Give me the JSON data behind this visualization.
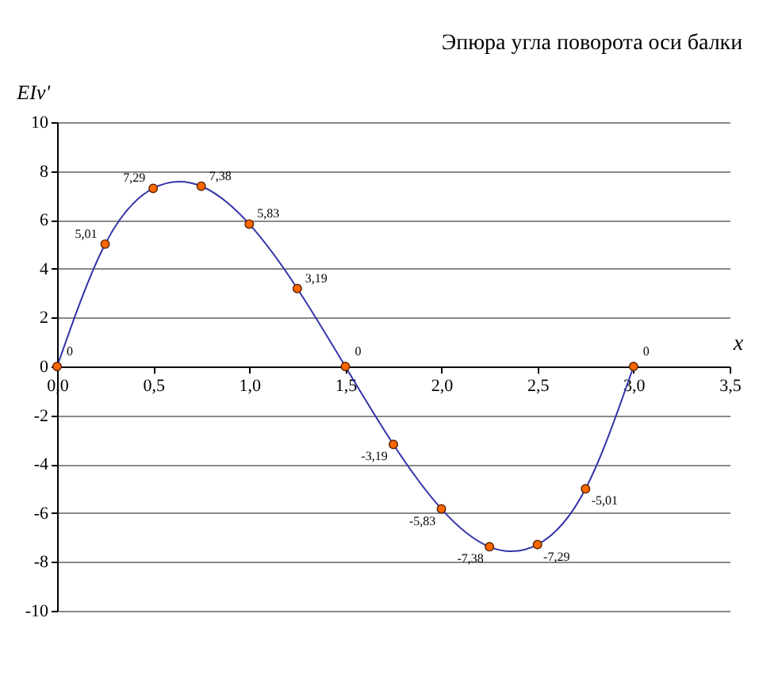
{
  "chart_data": {
    "type": "line",
    "title": "Эпюра угла поворота оси балки",
    "xlabel": "x",
    "ylabel": "EIv'",
    "x": [
      0,
      0.25,
      0.5,
      0.75,
      1,
      1.25,
      1.5,
      1.75,
      2,
      2.25,
      2.5,
      2.75,
      3
    ],
    "series": [
      {
        "color": "#3333aa",
        "values": [
          0,
          5.01,
          7.29,
          7.38,
          5.83,
          3.19,
          0,
          -3.19,
          -5.83,
          -7.38,
          -7.29,
          -5.01,
          0
        ],
        "value_labels": [
          "0",
          "5,01",
          "7,29",
          "7,38",
          "5,83",
          "3,19",
          "0",
          "-3,19",
          "-5,83",
          "-7,38",
          "-7,29",
          "-5,01",
          "0"
        ]
      }
    ],
    "marker": "circle",
    "grid": "y",
    "xlim": [
      0,
      3.5
    ],
    "xticks": [
      {
        "value": 0,
        "label": "0,0"
      },
      {
        "value": 0.5,
        "label": "0,5"
      },
      {
        "value": 1,
        "label": "1,0"
      },
      {
        "value": 1.5,
        "label": "1,5"
      },
      {
        "value": 2,
        "label": "2,0"
      },
      {
        "value": 2.5,
        "label": "2,5"
      },
      {
        "value": 3,
        "label": "3,0"
      },
      {
        "value": 3.5,
        "label": "3,5"
      }
    ],
    "ylim": [
      -10,
      10
    ],
    "yticks": [
      -10,
      -8,
      -6,
      -4,
      -2,
      0,
      2,
      4,
      6,
      8,
      10
    ]
  }
}
